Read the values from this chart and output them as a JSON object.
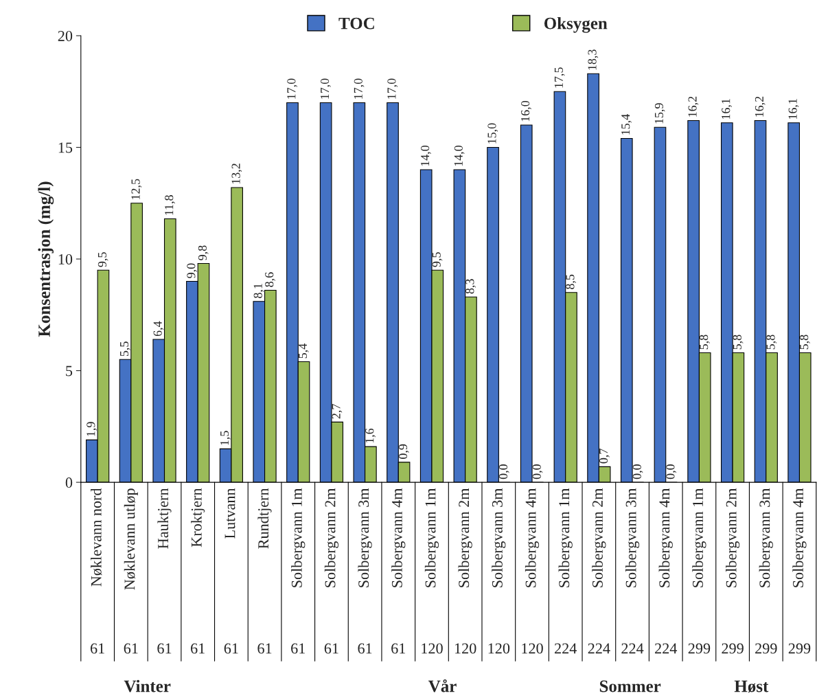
{
  "chart_data": {
    "type": "bar",
    "ylabel": "Konsentrasjon (mg/l)",
    "categories": [
      "Nøklevann nord",
      "Nøklevann utløp",
      "Hauktjern",
      "Kroktjern",
      "Lutvann",
      "Rundtjern",
      "Solbergvann 1m",
      "Solbergvann 2m",
      "Solbergvann 3m",
      "Solbergvann 4m",
      "Solbergvann 1m",
      "Solbergvann 2m",
      "Solbergvann 3m",
      "Solbergvann 4m",
      "Solbergvann 1m",
      "Solbergvann 2m",
      "Solbergvann 3m",
      "Solbergvann 4m",
      "Solbergvann 1m",
      "Solbergvann 2m",
      "Solbergvann 3m",
      "Solbergvann 4m"
    ],
    "series": [
      {
        "name": "TOC",
        "color": "#4472c4",
        "values": [
          1.9,
          5.5,
          6.4,
          9.0,
          1.5,
          8.1,
          17.0,
          17.0,
          17.0,
          17.0,
          14.0,
          14.0,
          15.0,
          16.0,
          17.5,
          18.3,
          15.4,
          15.9,
          16.2,
          16.1,
          16.2,
          16.1
        ],
        "value_labels": [
          "1,9",
          "5,5",
          "6,4",
          "9,0",
          "1,5",
          "8,1",
          "17,0",
          "17,0",
          "17,0",
          "17,0",
          "14,0",
          "14,0",
          "15,0",
          "16,0",
          "17,5",
          "18,3",
          "15,4",
          "15,9",
          "16,2",
          "16,1",
          "16,2",
          "16,1"
        ]
      },
      {
        "name": "Oksygen",
        "color": "#9bbb59",
        "values": [
          9.5,
          12.5,
          11.8,
          9.8,
          13.2,
          8.6,
          5.4,
          2.7,
          1.6,
          0.9,
          9.5,
          8.3,
          0.0,
          0.0,
          8.5,
          0.7,
          0.0,
          0.0,
          5.8,
          5.8,
          5.8,
          5.8
        ],
        "value_labels": [
          "9,5",
          "12,5",
          "11,8",
          "9,8",
          "13,2",
          "8,6",
          "5,4",
          "2,7",
          "1,6",
          "0,9",
          "9,5",
          "8,3",
          "0,0",
          "0,0",
          "8,5",
          "0,7",
          "0,0",
          "0,0",
          "5,8",
          "5,8",
          "5,8",
          "5,8"
        ]
      }
    ],
    "annotations": [
      "61",
      "61",
      "61",
      "61",
      "61",
      "61",
      "61",
      "61",
      "61",
      "61",
      "120",
      "120",
      "120",
      "120",
      "224",
      "224",
      "224",
      "224",
      "299",
      "299",
      "299",
      "299",
      "Vinter",
      "Vår",
      "Sommer",
      "Høst"
    ],
    "ylim": [
      0,
      20
    ],
    "yticks": [
      0,
      5,
      10,
      15,
      20
    ],
    "grid": false,
    "legend": "top"
  }
}
